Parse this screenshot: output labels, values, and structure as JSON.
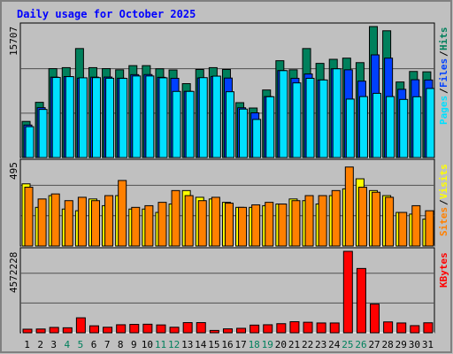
{
  "title": "Daily usage for October 2025",
  "colors": {
    "background": "#C0C0C0",
    "panel": "#C0C0C0",
    "title": "#0000FF",
    "hits": "#00805C",
    "files": "#0040FF",
    "pages": "#00E0FF",
    "visits": "#FFFF00",
    "sites": "#FF8000",
    "kbytes": "#FF0000",
    "weekend_label": "#00805C",
    "weekday_label": "#000000"
  },
  "legends": {
    "top": [
      "Pages",
      "Files",
      "Hits"
    ],
    "middle": [
      "Sites",
      "Visits"
    ],
    "bottom": [
      "KBytes"
    ]
  },
  "axis_max_labels": {
    "top": "15707",
    "middle": "495",
    "bottom": "4572228"
  },
  "chart_data": [
    {
      "type": "bar",
      "panel": "top",
      "categories": [
        "1",
        "2",
        "3",
        "4",
        "5",
        "6",
        "7",
        "8",
        "9",
        "10",
        "11",
        "12",
        "13",
        "14",
        "15",
        "16",
        "17",
        "18",
        "19",
        "20",
        "21",
        "22",
        "23",
        "24",
        "25",
        "26",
        "27",
        "28",
        "29",
        "30",
        "31"
      ],
      "weekend_days": [
        "4",
        "5",
        "11",
        "12",
        "18",
        "19",
        "25",
        "26"
      ],
      "ylim": [
        0,
        15707
      ],
      "series": [
        {
          "name": "Hits",
          "values": [
            4330,
            6620,
            10660,
            10780,
            13070,
            10780,
            10660,
            10520,
            11020,
            11020,
            10640,
            10500,
            8860,
            10560,
            10780,
            10560,
            6580,
            5940,
            8100,
            11610,
            10520,
            13070,
            11290,
            11780,
            11920,
            11380,
            15707,
            15200,
            9060,
            10320,
            10280
          ]
        },
        {
          "name": "Files",
          "values": [
            3900,
            5980,
            9640,
            9710,
            9520,
            9640,
            9650,
            9510,
            9940,
            9950,
            9620,
            9500,
            7940,
            9540,
            9720,
            9530,
            5970,
            5360,
            7310,
            10430,
            9500,
            10020,
            9300,
            10640,
            10520,
            9160,
            12310,
            11920,
            8180,
            9330,
            9300
          ]
        },
        {
          "name": "Pages",
          "values": [
            3700,
            5770,
            9600,
            9700,
            9560,
            9580,
            9510,
            9490,
            9780,
            9780,
            9560,
            7930,
            7930,
            9580,
            9760,
            7890,
            5810,
            4570,
            7290,
            10420,
            8950,
            9500,
            9300,
            10640,
            7010,
            7310,
            7700,
            7310,
            6970,
            7290,
            8280
          ]
        }
      ]
    },
    {
      "type": "bar",
      "panel": "middle",
      "categories": [
        "1",
        "2",
        "3",
        "4",
        "5",
        "6",
        "7",
        "8",
        "9",
        "10",
        "11",
        "12",
        "13",
        "14",
        "15",
        "16",
        "17",
        "18",
        "19",
        "20",
        "21",
        "22",
        "23",
        "24",
        "25",
        "26",
        "27",
        "28",
        "29",
        "30",
        "31"
      ],
      "ylim": [
        0,
        495
      ],
      "series": [
        {
          "name": "Visits",
          "values": [
            370,
            230,
            300,
            220,
            210,
            280,
            240,
            300,
            220,
            220,
            200,
            250,
            330,
            290,
            280,
            260,
            230,
            230,
            240,
            250,
            280,
            270,
            250,
            300,
            340,
            400,
            330,
            300,
            200,
            190,
            160
          ]
        },
        {
          "name": "Sites",
          "values": [
            350,
            280,
            310,
            270,
            290,
            270,
            300,
            390,
            230,
            240,
            260,
            330,
            300,
            270,
            290,
            255,
            230,
            245,
            260,
            250,
            270,
            300,
            300,
            330,
            470,
            350,
            320,
            290,
            200,
            240,
            210
          ]
        }
      ]
    },
    {
      "type": "bar",
      "panel": "bottom",
      "categories": [
        "1",
        "2",
        "3",
        "4",
        "5",
        "6",
        "7",
        "8",
        "9",
        "10",
        "11",
        "12",
        "13",
        "14",
        "15",
        "16",
        "17",
        "18",
        "19",
        "20",
        "21",
        "22",
        "23",
        "24",
        "25",
        "26",
        "27",
        "28",
        "29",
        "30",
        "31"
      ],
      "ylim": [
        0,
        4572228
      ],
      "series": [
        {
          "name": "KBytes",
          "values": [
            200000,
            210000,
            300000,
            280000,
            840000,
            390000,
            310000,
            450000,
            470000,
            480000,
            440000,
            310000,
            570000,
            570000,
            130000,
            220000,
            250000,
            430000,
            450000,
            510000,
            620000,
            590000,
            550000,
            550000,
            4572228,
            3610000,
            1610000,
            610000,
            550000,
            400000,
            560000
          ]
        }
      ]
    }
  ]
}
